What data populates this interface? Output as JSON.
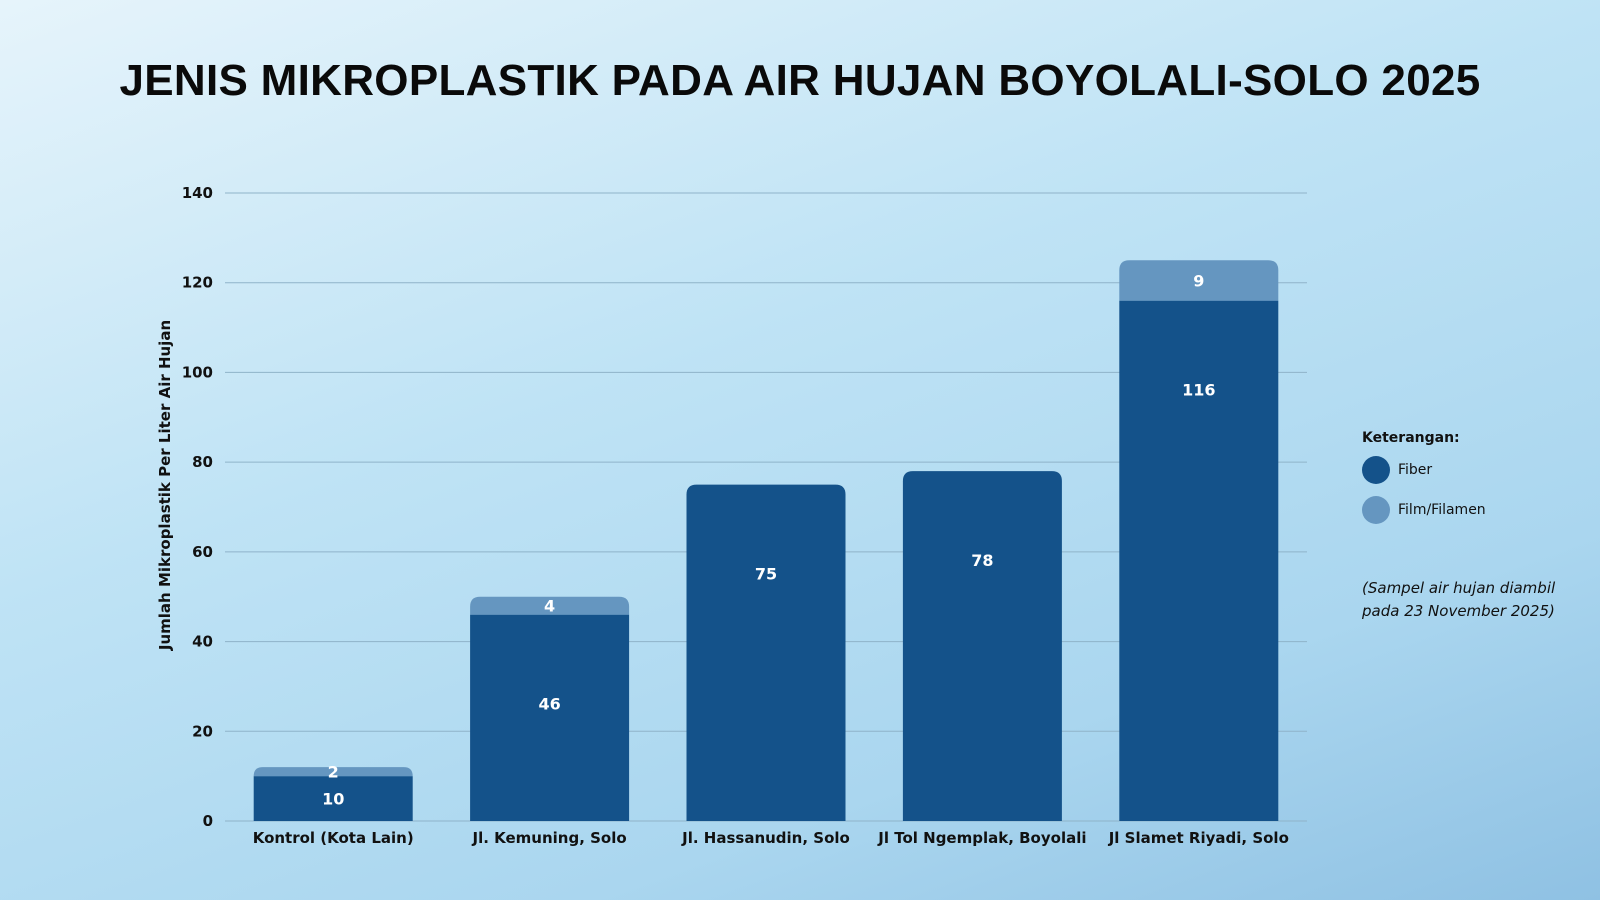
{
  "title": "JENIS MIKROPLASTIK PADA AIR HUJAN BOYOLALI-SOLO 2025",
  "legend": {
    "title": "Keterangan:",
    "items": [
      {
        "label": "Fiber",
        "color": "#14528a"
      },
      {
        "label": "Film/Filamen",
        "color": "#6596c0"
      }
    ]
  },
  "note": "(Sampel air hujan diambil pada 23 November 2025)",
  "chart_data": {
    "type": "bar",
    "stacked": true,
    "title": "JENIS MIKROPLASTIK PADA AIR HUJAN BOYOLALI-SOLO 2025",
    "xlabel": "",
    "ylabel": "Jumlah Mikroplastik Per Liter Air Hujan",
    "ylim": [
      0,
      140
    ],
    "yticks": [
      0,
      20,
      40,
      60,
      80,
      100,
      120,
      140
    ],
    "grid": true,
    "legend_position": "right",
    "categories": [
      "Kontrol (Kota Lain)",
      "Jl. Kemuning, Solo",
      "Jl. Hassanudin, Solo",
      "Jl Tol Ngemplak, Boyolali",
      "Jl Slamet Riyadi, Solo"
    ],
    "series": [
      {
        "name": "Fiber",
        "color": "#14528a",
        "values": [
          10,
          46,
          75,
          78,
          116
        ]
      },
      {
        "name": "Film/Filamen",
        "color": "#6596c0",
        "values": [
          2,
          4,
          0,
          0,
          9
        ]
      }
    ]
  }
}
